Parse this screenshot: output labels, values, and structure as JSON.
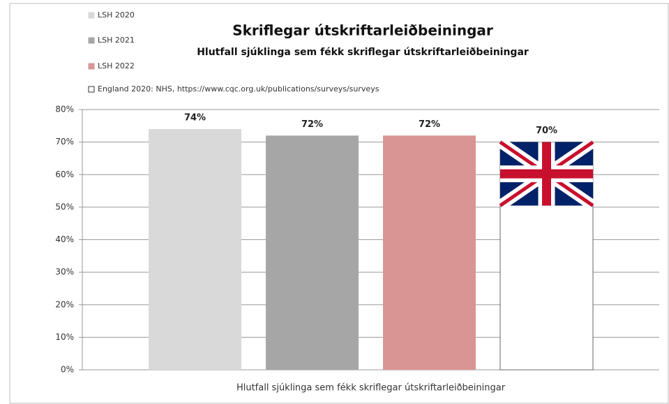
{
  "chart_data": {
    "type": "bar",
    "title": "Skriflegar útskriftarleiðbeiningar",
    "subtitle": "Hlutfall sjúklinga sem fékk skriflegar útskriftarleiðbeiningar",
    "categories": [
      "Hlutfall sjúklinga sem fékk skriflegar útskriftarleiðbeiningar"
    ],
    "series": [
      {
        "name": "LSH 2020",
        "color": "#d9d9d9",
        "values": [
          74
        ],
        "value_labels": [
          "74%"
        ]
      },
      {
        "name": "LSH 2021",
        "color": "#a6a6a6",
        "values": [
          72
        ],
        "value_labels": [
          "72%"
        ]
      },
      {
        "name": "LSH 2022",
        "color": "#d99594",
        "values": [
          72
        ],
        "value_labels": [
          "72%"
        ]
      },
      {
        "name": "England 2020: NHS,  https://www.cqc.org.uk/publications/surveys/surveys",
        "color": "#ffffff",
        "values": [
          70
        ],
        "value_labels": [
          "70%"
        ]
      }
    ],
    "ylim": [
      0,
      80
    ],
    "yticks": [
      {
        "value": 0,
        "label": "0%"
      },
      {
        "value": 10,
        "label": "10%"
      },
      {
        "value": 20,
        "label": "20%"
      },
      {
        "value": 30,
        "label": "30%"
      },
      {
        "value": 40,
        "label": "40%"
      },
      {
        "value": 50,
        "label": "50%"
      },
      {
        "value": 60,
        "label": "60%"
      },
      {
        "value": 70,
        "label": "70%"
      },
      {
        "value": 80,
        "label": "80%"
      }
    ],
    "grid": true,
    "legend": "top-left"
  }
}
